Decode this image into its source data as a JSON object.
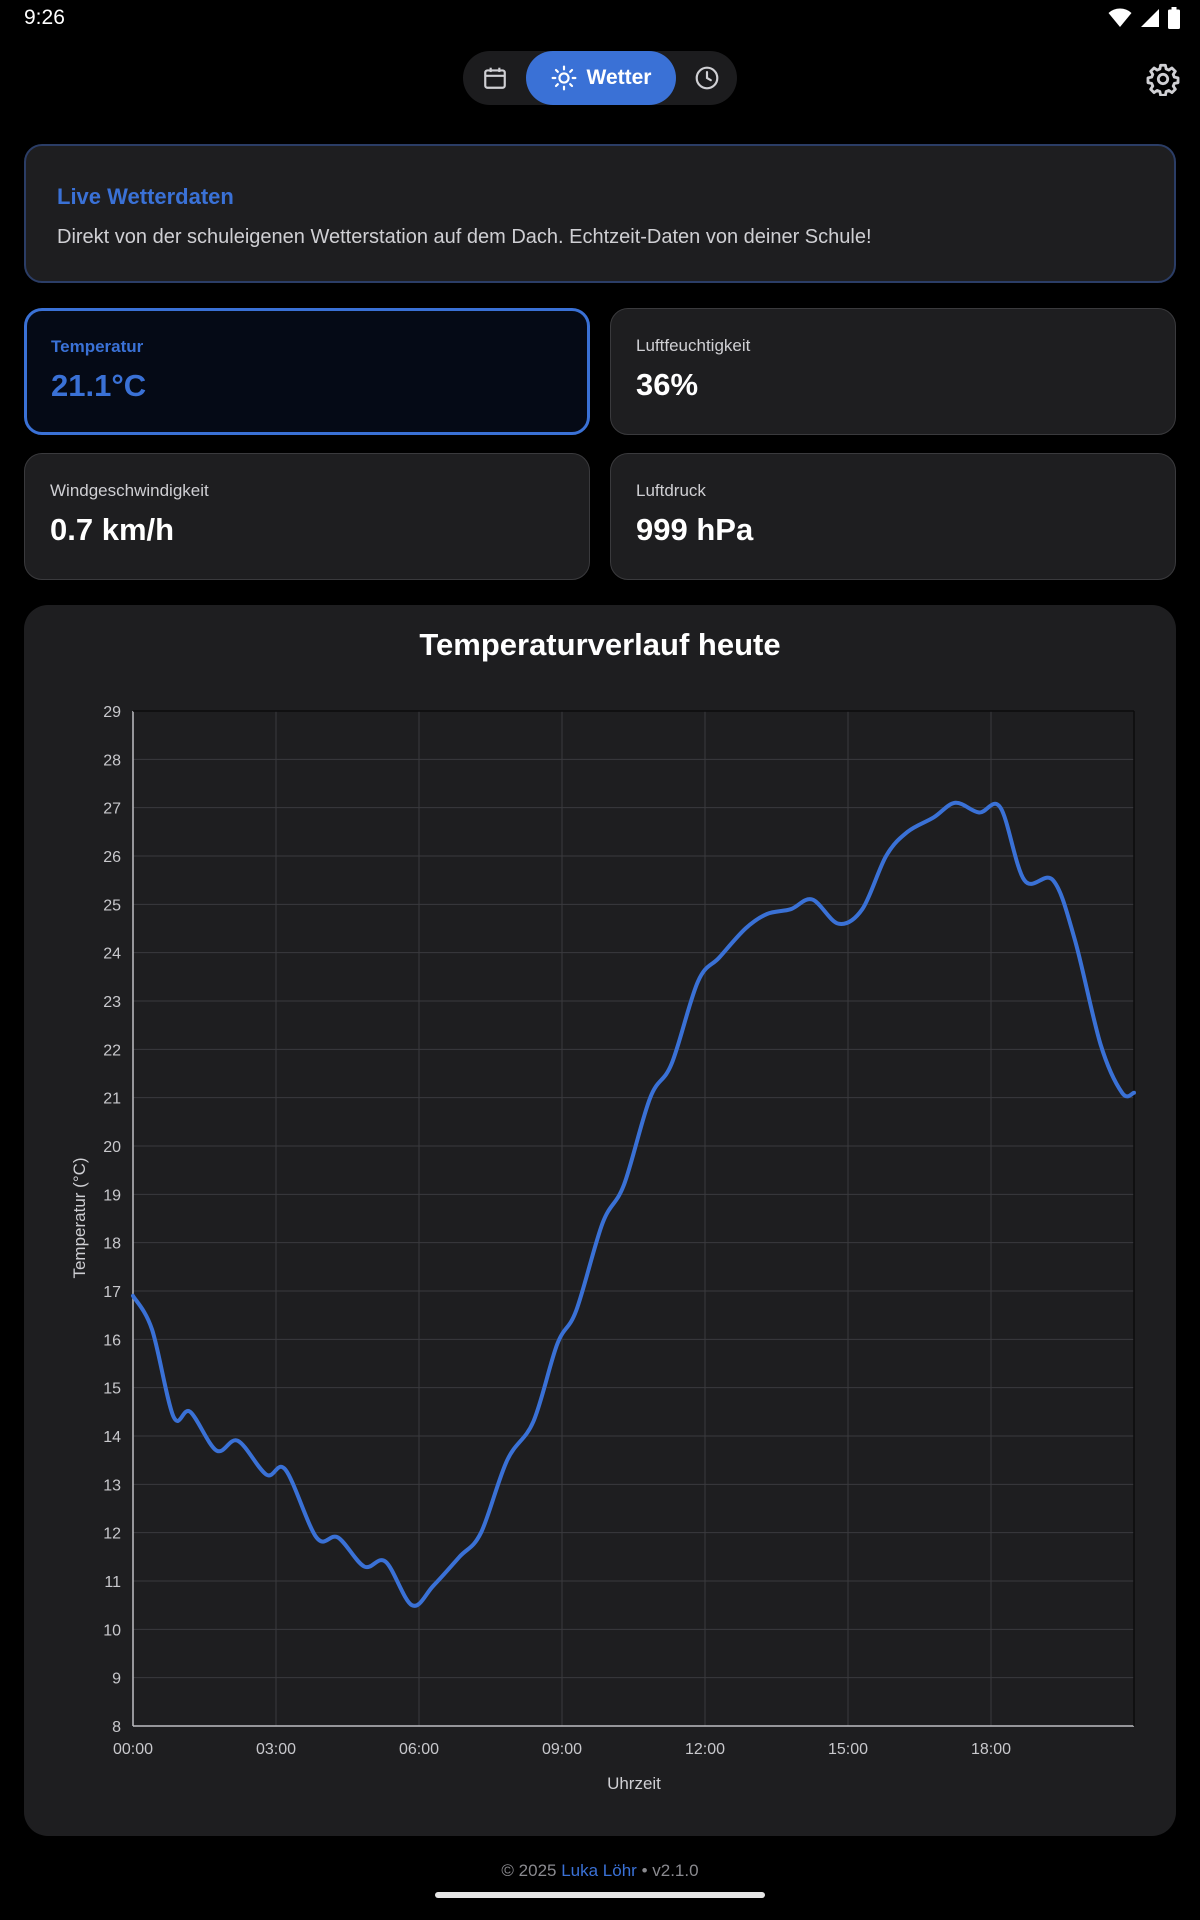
{
  "status_bar": {
    "time": "9:26"
  },
  "nav": {
    "weather_label": "Wetter",
    "icons": [
      "calendar-icon",
      "sun-icon",
      "clock-icon",
      "gear-icon"
    ]
  },
  "info": {
    "title": "Live Wetterdaten",
    "text": "Direkt von der schuleigenen Wetterstation auf dem Dach. Echtzeit-Daten von deiner Schule!"
  },
  "stats": {
    "temperature": {
      "label": "Temperatur",
      "value": "21.1°C"
    },
    "humidity": {
      "label": "Luftfeuchtigkeit",
      "value": "36%"
    },
    "wind": {
      "label": "Windgeschwindigkeit",
      "value": "0.7 km/h"
    },
    "pressure": {
      "label": "Luftdruck",
      "value": "999 hPa"
    }
  },
  "colors": {
    "accent": "#3a71d6",
    "card": "#1e1e20",
    "background": "#000000"
  },
  "chart_data": {
    "type": "line",
    "title": "Temperaturverlauf heute",
    "xlabel": "Uhrzeit",
    "ylabel": "Temperatur (°C)",
    "x_unit": "hours",
    "xlim": [
      0,
      21
    ],
    "ylim": [
      8,
      29
    ],
    "x_ticks": [
      "00:00",
      "03:00",
      "06:00",
      "09:00",
      "12:00",
      "15:00",
      "18:00"
    ],
    "y_ticks": [
      8,
      9,
      10,
      11,
      12,
      13,
      14,
      15,
      16,
      17,
      18,
      19,
      20,
      21,
      22,
      23,
      24,
      25,
      26,
      27,
      28,
      29
    ],
    "grid": true,
    "series": [
      {
        "color": "#3a71d6",
        "x": [
          0,
          0.4,
          0.85,
          1.2,
          1.75,
          2.2,
          2.8,
          3.2,
          3.85,
          4.3,
          4.85,
          5.3,
          5.85,
          6.3,
          6.85,
          7.3,
          7.85,
          8.4,
          8.9,
          9.3,
          9.85,
          10.3,
          10.85,
          11.3,
          11.85,
          12.3,
          12.85,
          13.3,
          13.8,
          14.25,
          14.8,
          15.3,
          15.8,
          16.25,
          16.8,
          17.25,
          17.75,
          18.2,
          18.7,
          19.3,
          19.75,
          20.3,
          20.75,
          21.0
        ],
        "y": [
          16.9,
          16.2,
          14.4,
          14.5,
          13.7,
          13.9,
          13.2,
          13.3,
          11.9,
          11.9,
          11.3,
          11.4,
          10.5,
          10.9,
          11.5,
          12.0,
          13.5,
          14.3,
          15.9,
          16.6,
          18.4,
          19.2,
          21.0,
          21.7,
          23.4,
          23.9,
          24.5,
          24.8,
          24.9,
          25.1,
          24.6,
          24.9,
          26.0,
          26.5,
          26.8,
          27.1,
          26.9,
          27.0,
          25.5,
          25.5,
          24.3,
          22.1,
          21.1,
          21.1
        ]
      }
    ]
  },
  "footer": {
    "prefix": "© 2025 ",
    "author": "Luka Löhr",
    "suffix": " • v2.1.0"
  }
}
